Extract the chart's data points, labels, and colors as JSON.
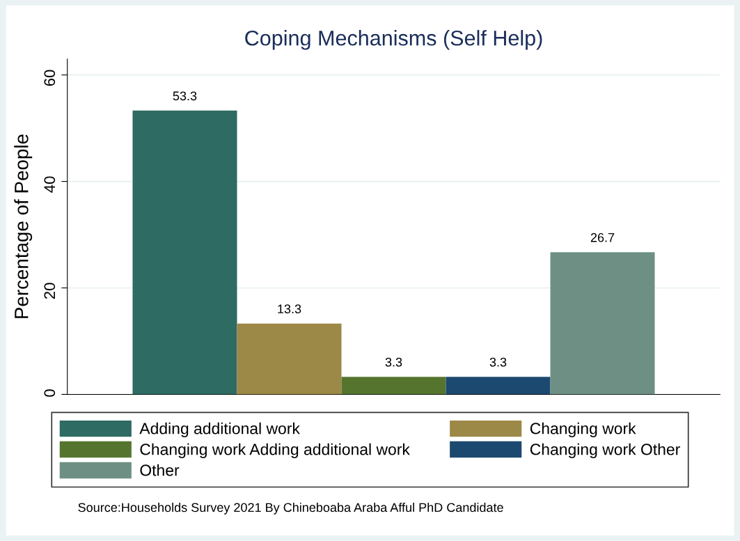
{
  "chart_data": {
    "type": "bar",
    "title": "Coping Mechanisms (Self Help)",
    "ylabel": "Percentage of People",
    "categories": [
      null
    ],
    "series": [
      {
        "name": "Adding additional work",
        "color": "#2e6b62",
        "values": [
          53.3
        ]
      },
      {
        "name": "Changing work",
        "color": "#9c8847",
        "values": [
          13.3
        ]
      },
      {
        "name": "Changing work Adding additional work",
        "color": "#55752f",
        "values": [
          3.3
        ]
      },
      {
        "name": "Changing work Other",
        "color": "#1c4970",
        "values": [
          3.3
        ]
      },
      {
        "name": "Other",
        "color": "#6e9084",
        "values": [
          26.7
        ]
      }
    ],
    "ylim": [
      0,
      63
    ],
    "yticks": [
      0,
      20,
      40,
      60
    ],
    "grid": "y",
    "legend": "bottom",
    "data_labels": true,
    "annotations": [
      "Source:Households Survey 2021 By Chineboaba Araba Afful PhD Candidate"
    ]
  }
}
